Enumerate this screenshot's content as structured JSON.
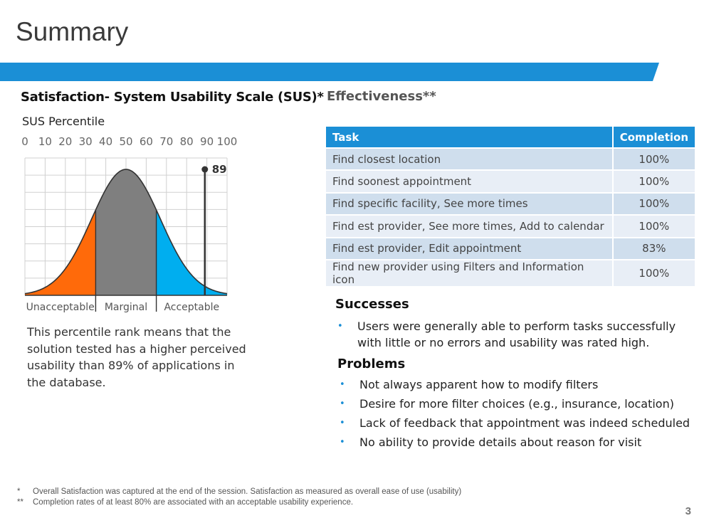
{
  "slide": {
    "title": "Summary",
    "page_number": "3",
    "accent_color": "#1b8fd6"
  },
  "sus": {
    "heading": "Satisfaction- System Usability Scale (SUS)*",
    "subheading": "SUS Percentile",
    "score": 89,
    "score_label": "89",
    "scale_ticks": [
      "0",
      "10",
      "20",
      "30",
      "40",
      "50",
      "60",
      "70",
      "80",
      "90",
      "100"
    ],
    "zones": [
      {
        "label": "Unacceptable",
        "from": 0,
        "to": 35,
        "color": "#ff6a0a"
      },
      {
        "label": "Marginal",
        "from": 35,
        "to": 65,
        "color": "#7f7f7f"
      },
      {
        "label": "Acceptable",
        "from": 65,
        "to": 100,
        "color": "#00aeef"
      }
    ],
    "description": "This percentile rank means that the solution tested has a higher perceived usability than 89% of applications in the database."
  },
  "effectiveness": {
    "heading": "Effectiveness**",
    "columns": [
      "Task",
      "Completion"
    ],
    "rows": [
      {
        "task": "Find closest location",
        "completion": "100%"
      },
      {
        "task": "Find soonest appointment",
        "completion": "100%"
      },
      {
        "task": "Find specific facility, See more times",
        "completion": "100%"
      },
      {
        "task": "Find est provider, See more times, Add to calendar",
        "completion": "100%"
      },
      {
        "task": "Find est provider, Edit appointment",
        "completion": "83%"
      },
      {
        "task": "Find new provider using Filters and Information icon",
        "completion": "100%"
      }
    ]
  },
  "successes": {
    "heading": "Successes",
    "items": [
      "Users were generally able to perform tasks successfully with little or no errors and usability was rated high."
    ]
  },
  "problems": {
    "heading": "Problems",
    "items": [
      "Not always apparent how to modify filters",
      "Desire for more filter choices (e.g., insurance, location)",
      "Lack of feedback that appointment was indeed scheduled",
      "No ability to provide details about reason for visit"
    ]
  },
  "footnotes": [
    {
      "marker": "*",
      "text": "Overall Satisfaction was captured at the end of the session. Satisfaction as measured as overall ease of use (usability)"
    },
    {
      "marker": "**",
      "text": "Completion rates of at least 80% are associated with an acceptable usability experience."
    }
  ],
  "bullet_glyph": "•"
}
